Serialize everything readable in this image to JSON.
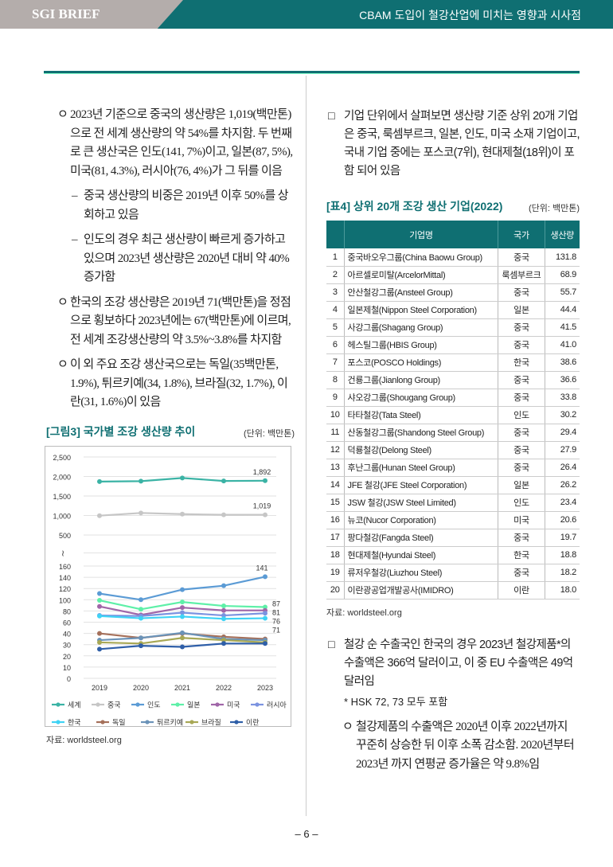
{
  "header": {
    "brand": "SGI BRIEF",
    "title": "CBAM 도입이 철강산업에 미치는 영향과 시사점"
  },
  "left": {
    "paragraphs": [
      {
        "bullet": "ㅇ",
        "text": "2023년 기준으로 중국의 생산량은 1,019(백만톤)으로 전 세계 생산량의 약 54%를 차지함. 두 번째로 큰 생산국은 인도(141, 7%)이고, 일본(87, 5%), 미국(81, 4.3%), 러시아(76, 4%)가 그 뒤를 이음"
      },
      {
        "bullet": "–",
        "text": "중국 생산량의 비중은 2019년 이후 50%를 상회하고 있음"
      },
      {
        "bullet": "–",
        "text": "인도의 경우 최근 생산량이 빠르게 증가하고 있으며 2023년 생산량은 2020년 대비 약 40% 증가함"
      },
      {
        "bullet": "ㅇ",
        "text": "한국의 조강 생산량은 2019년 71(백만톤)을 정점으로 횡보하다 2023년에는 67(백만톤)에 이르며, 전 세계 조강생산량의 약 3.5%~3.8%를 차지함"
      },
      {
        "bullet": "ㅇ",
        "text": "이 외 주요 조강 생산국으로는 독일(35백만톤, 1.9%), 튀르키예(34, 1.8%), 브라질(32, 1.7%), 이란(31, 1.6%)이 있음"
      }
    ],
    "figure_title": "[그림3] 국가별 조강 생산량 추이",
    "figure_unit": "(단위: 백만톤)",
    "figure_source": "자료: worldsteel.org"
  },
  "chart_data": {
    "type": "line",
    "title": "[그림3] 국가별 조강 생산량 추이",
    "unit": "(단위: 백만톤)",
    "x": [
      "2019",
      "2020",
      "2021",
      "2022",
      "2023"
    ],
    "yticks_upper": [
      "2,500",
      "2,000",
      "1,500",
      "1,000",
      "500"
    ],
    "yupper": [
      2500,
      2000,
      1500,
      1000,
      500
    ],
    "yticks_lower": [
      "160",
      "140",
      "120",
      "100",
      "80",
      "60",
      "40",
      "30",
      "20",
      "10",
      "0"
    ],
    "ylower": [
      160,
      140,
      120,
      100,
      80,
      60,
      40,
      30,
      20,
      10,
      0
    ],
    "break_symbol": "≀",
    "series": [
      {
        "name": "세계",
        "color": "#3bb3a5",
        "values": [
          1869,
          1880,
          1962,
          1885,
          1892
        ],
        "label": "1,892"
      },
      {
        "name": "중국",
        "color": "#c6c6c6",
        "values": [
          996,
          1065,
          1035,
          1018,
          1019
        ],
        "label": "1,019"
      },
      {
        "name": "인도",
        "color": "#5b9bd5",
        "values": [
          111,
          100,
          118,
          125,
          141
        ],
        "label": "141"
      },
      {
        "name": "일본",
        "color": "#5ef0a8",
        "values": [
          99,
          83,
          96,
          89,
          87
        ],
        "label": "87"
      },
      {
        "name": "미국",
        "color": "#a066a8",
        "values": [
          88,
          73,
          86,
          81,
          81
        ],
        "label": "81"
      },
      {
        "name": "러시아",
        "color": "#7b93e0",
        "values": [
          72,
          71,
          77,
          72,
          76
        ],
        "label": "76"
      },
      {
        "name": "한국",
        "color": "#3fd3f5",
        "values": [
          71,
          67,
          70,
          66,
          67
        ],
        "label": "71"
      },
      {
        "name": "독일",
        "color": "#a5705a",
        "values": [
          40,
          36,
          40,
          37,
          35
        ]
      },
      {
        "name": "튀르키예",
        "color": "#6b93b8",
        "values": [
          34,
          36,
          41,
          35,
          34
        ]
      },
      {
        "name": "브라질",
        "color": "#a8a855",
        "values": [
          32,
          31,
          36,
          34,
          32
        ]
      },
      {
        "name": "이란",
        "color": "#2f5fa8",
        "values": [
          26,
          29,
          28,
          31,
          31
        ]
      }
    ]
  },
  "right": {
    "intro": {
      "bullet": "□",
      "text": "기업 단위에서 살펴보면 생산량 기준 상위 20개 기업은 중국, 룩셈부르크, 일본, 인도, 미국 소재 기업이고, 국내 기업 중에는 포스코(7위), 현대제철(18위)이 포함 되어 있음"
    },
    "table_title": "[표4] 상위 20개 조강 생산 기업(2022)",
    "table_unit": "(단위: 백만톤)",
    "columns": [
      "",
      "기업명",
      "국가",
      "생산량"
    ],
    "rows": [
      [
        "1",
        "중국바오우그룹(China Baowu Group)",
        "중국",
        "131.8"
      ],
      [
        "2",
        "아르셀로미탈(ArcelorMittal)",
        "룩셈부르크",
        "68.9"
      ],
      [
        "3",
        "안산철강그룹(Ansteel Group)",
        "중국",
        "55.7"
      ],
      [
        "4",
        "일본제철(Nippon Steel Corporation)",
        "일본",
        "44.4"
      ],
      [
        "5",
        "사강그룹(Shagang Group)",
        "중국",
        "41.5"
      ],
      [
        "6",
        "헤스틸그룹(HBIS Group)",
        "중국",
        "41.0"
      ],
      [
        "7",
        "포스코(POSCO Holdings)",
        "한국",
        "38.6"
      ],
      [
        "8",
        "건룡그룹(Jianlong Group)",
        "중국",
        "36.6"
      ],
      [
        "9",
        "샤오강그룹(Shougang Group)",
        "중국",
        "33.8"
      ],
      [
        "10",
        "타타철강(Tata Steel)",
        "인도",
        "30.2"
      ],
      [
        "11",
        "산동철강그룹(Shandong Steel Group)",
        "중국",
        "29.4"
      ],
      [
        "12",
        "덕룡철강(Delong Steel)",
        "중국",
        "27.9"
      ],
      [
        "13",
        "후난그룹(Hunan Steel Group)",
        "중국",
        "26.4"
      ],
      [
        "14",
        "JFE 철강(JFE Steel Corporation)",
        "일본",
        "26.2"
      ],
      [
        "15",
        "JSW 철강(JSW Steel Limited)",
        "인도",
        "23.4"
      ],
      [
        "16",
        "뉴코(Nucor Corporation)",
        "미국",
        "20.6"
      ],
      [
        "17",
        "팡다철강(Fangda Steel)",
        "중국",
        "19.7"
      ],
      [
        "18",
        "현대제철(Hyundai Steel)",
        "한국",
        "18.8"
      ],
      [
        "19",
        "류저우철강(Liuzhou Steel)",
        "중국",
        "18.2"
      ],
      [
        "20",
        "이란광공업개발공사(IMIDRO)",
        "이란",
        "18.0"
      ]
    ],
    "table_source": "자료: worldsteel.org",
    "export": {
      "bullet": "□",
      "text": "철강 순 수출국인 한국의 경우 2023년 철강제품*의 수출액은 366억 달러이고, 이 중 EU 수출액은 49억 달러임"
    },
    "footnote": "* HSK 72, 73 모두 포함",
    "export_detail": {
      "bullet": "ㅇ",
      "text": "철강제품의 수출액은 2020년 이후 2022년까지 꾸준히 상승한 뒤 이후 소폭 감소함. 2020년부터 2023년 까지 연평균 증가율은 약 9.8%임"
    }
  },
  "footer": {
    "page": "–  6  –"
  }
}
